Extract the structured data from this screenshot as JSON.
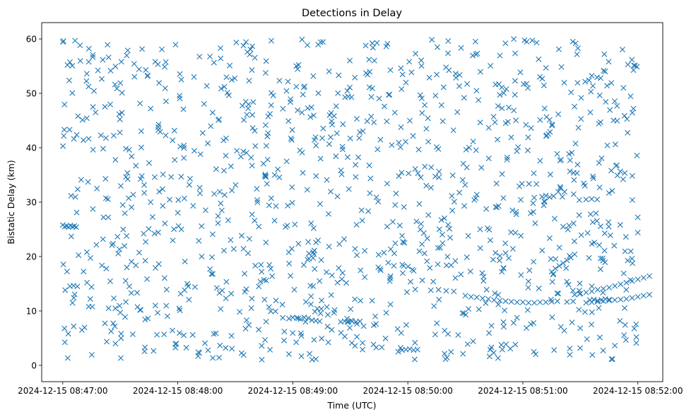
{
  "chart_data": {
    "type": "scatter",
    "title": "Detections in Delay",
    "xlabel": "Time (UTC)",
    "ylabel": "Bistatic Delay (km)",
    "x_axis": {
      "kind": "time",
      "xlim": [
        "2024-12-15 08:46:49",
        "2024-12-15 08:52:13"
      ],
      "ticks": [
        "2024-12-15 08:47:00",
        "2024-12-15 08:48:00",
        "2024-12-15 08:49:00",
        "2024-12-15 08:50:00",
        "2024-12-15 08:51:00",
        "2024-12-15 08:52:00"
      ]
    },
    "y_axis": {
      "ylim": [
        -3,
        63
      ],
      "ticks": [
        0,
        10,
        20,
        30,
        40,
        50,
        60
      ]
    },
    "grid": false,
    "legend": "none",
    "marker": "x",
    "color": "#1f77b4",
    "series": [
      {
        "points_time": [
          [
            "08:47:00",
            25.8
          ],
          [
            "08:47:01",
            25.5
          ],
          [
            "08:47:02",
            25.6
          ],
          [
            "08:47:03",
            25.4
          ],
          [
            "08:47:04",
            25.7
          ],
          [
            "08:47:05",
            25.5
          ],
          [
            "08:47:06",
            25.6
          ],
          [
            "08:47:07",
            25.4
          ],
          [
            "08:48:58",
            8.6
          ],
          [
            "08:49:00",
            8.8
          ],
          [
            "08:49:02",
            8.7
          ],
          [
            "08:49:04",
            8.5
          ],
          [
            "08:49:06",
            8.8
          ],
          [
            "08:49:08",
            8.7
          ],
          [
            "08:49:10",
            8.3
          ],
          [
            "08:49:12",
            8.2
          ],
          [
            "08:49:14",
            8.1
          ],
          [
            "08:49:25",
            8.0
          ],
          [
            "08:49:27",
            8.1
          ],
          [
            "08:49:29",
            8.0
          ],
          [
            "08:49:31",
            8.1
          ],
          [
            "08:49:33",
            8.0
          ],
          [
            "08:49:35",
            8.1
          ],
          [
            "08:49:55",
            2.5
          ],
          [
            "08:49:57",
            2.8
          ],
          [
            "08:49:59",
            2.9
          ],
          [
            "08:50:01",
            3.0
          ],
          [
            "08:50:03",
            2.8
          ],
          [
            "08:50:05",
            2.9
          ],
          [
            "08:50:12",
            13.8
          ],
          [
            "08:50:16",
            13.9
          ],
          [
            "08:50:20",
            13.7
          ],
          [
            "08:50:24",
            13.6
          ],
          [
            "08:50:30",
            12.8
          ],
          [
            "08:50:33",
            12.6
          ],
          [
            "08:50:36",
            12.5
          ],
          [
            "08:50:39",
            12.3
          ],
          [
            "08:50:42",
            12.2
          ],
          [
            "08:50:45",
            12.0
          ],
          [
            "08:50:48",
            11.9
          ],
          [
            "08:50:51",
            11.8
          ],
          [
            "08:50:54",
            11.7
          ],
          [
            "08:50:57",
            11.6
          ],
          [
            "08:51:00",
            11.6
          ],
          [
            "08:51:03",
            11.5
          ],
          [
            "08:51:06",
            11.5
          ],
          [
            "08:51:09",
            11.6
          ],
          [
            "08:51:12",
            11.6
          ],
          [
            "08:51:15",
            11.7
          ],
          [
            "08:51:18",
            11.8
          ],
          [
            "08:51:33",
            11.5
          ],
          [
            "08:51:36",
            11.6
          ],
          [
            "08:51:39",
            11.7
          ],
          [
            "08:51:42",
            11.8
          ],
          [
            "08:51:45",
            11.9
          ],
          [
            "08:51:48",
            12.0
          ],
          [
            "08:51:51",
            12.1
          ],
          [
            "08:51:54",
            12.2
          ],
          [
            "08:51:57",
            12.4
          ],
          [
            "08:52:00",
            12.6
          ],
          [
            "08:52:03",
            12.8
          ],
          [
            "08:52:06",
            13.0
          ],
          [
            "08:51:10",
            31.0
          ],
          [
            "08:51:12",
            31.2
          ],
          [
            "08:51:14",
            30.9
          ],
          [
            "08:51:16",
            31.1
          ],
          [
            "08:51:15",
            17.2
          ],
          [
            "08:51:17",
            17.8
          ],
          [
            "08:51:19",
            18.3
          ],
          [
            "08:51:21",
            18.8
          ],
          [
            "08:51:23",
            19.3
          ],
          [
            "08:51:25",
            19.8
          ],
          [
            "08:51:27",
            20.4
          ],
          [
            "08:51:27",
            13.0
          ],
          [
            "08:51:30",
            13.2
          ],
          [
            "08:51:33",
            13.4
          ],
          [
            "08:51:36",
            13.6
          ],
          [
            "08:51:39",
            13.9
          ],
          [
            "08:51:42",
            14.1
          ],
          [
            "08:51:45",
            14.3
          ],
          [
            "08:51:48",
            14.6
          ],
          [
            "08:51:51",
            14.9
          ],
          [
            "08:51:54",
            15.2
          ],
          [
            "08:51:57",
            15.5
          ],
          [
            "08:52:00",
            15.8
          ],
          [
            "08:52:03",
            16.1
          ],
          [
            "08:52:06",
            16.4
          ],
          [
            "08:51:35",
            12.0
          ],
          [
            "08:51:37",
            12.1
          ],
          [
            "08:51:39",
            11.9
          ],
          [
            "08:51:41",
            12.0
          ],
          [
            "08:51:43",
            12.2
          ],
          [
            "08:51:45",
            12.1
          ]
        ]
      }
    ]
  }
}
